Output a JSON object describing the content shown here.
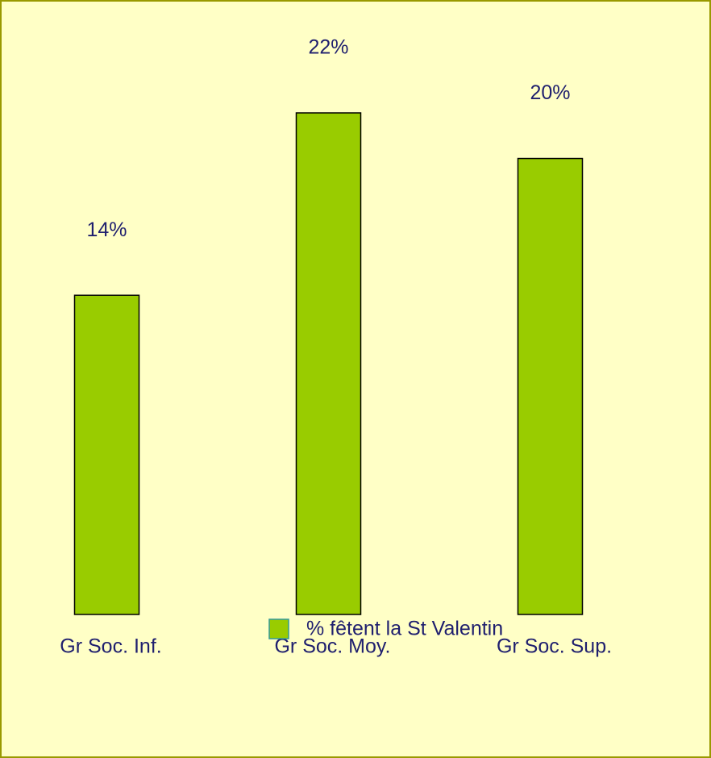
{
  "chart_data": {
    "type": "bar",
    "categories": [
      "Gr Soc. Inf.",
      "Gr Soc. Moy.",
      "Gr Soc. Sup."
    ],
    "series": [
      {
        "name": "% fêtent la St Valentin",
        "color": "#99cc00",
        "values": [
          14,
          22,
          20
        ],
        "value_labels": [
          "14%",
          "22%",
          "20%"
        ]
      }
    ]
  }
}
